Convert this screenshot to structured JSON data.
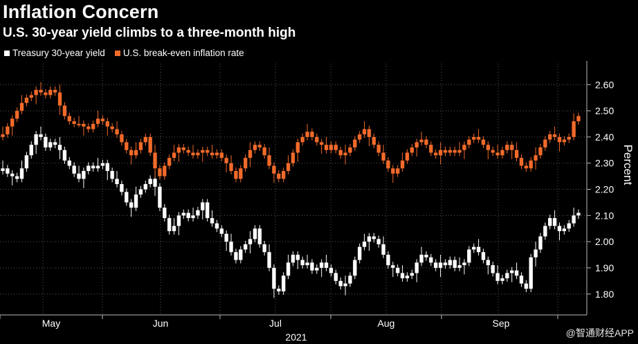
{
  "title": "Inflation Concern",
  "subtitle": "U.S. 30-year yield climbs to a three-month high",
  "watermark": "@智通财经APP",
  "colors": {
    "background": "#000000",
    "grid": "#555555",
    "series_white": "#ffffff",
    "series_orange": "#f26a2a"
  },
  "chart_data": {
    "type": "candlestick",
    "ylabel": "Percent",
    "ylim": [
      1.72,
      2.68
    ],
    "yticks": [
      "2.60",
      "2.50",
      "2.40",
      "2.30",
      "2.20",
      "2.10",
      "2.00",
      "1.90",
      "1.80"
    ],
    "x_months": [
      "May",
      "Jun",
      "Jul",
      "Aug",
      "Sep"
    ],
    "x_year": "2021",
    "x_range_days": [
      0,
      140
    ],
    "legend": [
      "Treasury 30-year yield",
      "U.S. break-even inflation rate"
    ],
    "series": [
      {
        "name": "Treasury 30-year yield",
        "color": "#ffffff",
        "closes": [
          2.28,
          2.26,
          2.25,
          2.24,
          2.28,
          2.33,
          2.37,
          2.41,
          2.4,
          2.36,
          2.38,
          2.37,
          2.35,
          2.31,
          2.29,
          2.26,
          2.24,
          2.27,
          2.29,
          2.28,
          2.29,
          2.3,
          2.27,
          2.24,
          2.22,
          2.19,
          2.15,
          2.13,
          2.18,
          2.2,
          2.22,
          2.24,
          2.21,
          2.13,
          2.09,
          2.04,
          2.06,
          2.1,
          2.11,
          2.09,
          2.1,
          2.12,
          2.15,
          2.09,
          2.07,
          2.05,
          2.03,
          2.0,
          1.96,
          1.93,
          1.97,
          1.99,
          2.01,
          2.05,
          1.99,
          1.96,
          1.9,
          1.82,
          1.81,
          1.87,
          1.92,
          1.95,
          1.93,
          1.91,
          1.92,
          1.89,
          1.9,
          1.92,
          1.9,
          1.88,
          1.85,
          1.83,
          1.84,
          1.87,
          1.93,
          1.98,
          2.0,
          2.02,
          2.01,
          1.99,
          1.95,
          1.91,
          1.9,
          1.88,
          1.86,
          1.87,
          1.88,
          1.92,
          1.95,
          1.94,
          1.92,
          1.9,
          1.92,
          1.91,
          1.93,
          1.9,
          1.91,
          1.92,
          1.97,
          1.98,
          1.96,
          1.93,
          1.91,
          1.88,
          1.85,
          1.86,
          1.88,
          1.89,
          1.87,
          1.84,
          1.82,
          1.94,
          1.97,
          2.02,
          2.06,
          2.09,
          2.06,
          2.04,
          2.05,
          2.07,
          2.1,
          2.11
        ]
      },
      {
        "name": "U.S. break-even inflation rate",
        "color": "#f26a2a",
        "closes": [
          2.41,
          2.44,
          2.47,
          2.5,
          2.53,
          2.55,
          2.56,
          2.58,
          2.57,
          2.56,
          2.58,
          2.57,
          2.52,
          2.48,
          2.46,
          2.45,
          2.45,
          2.44,
          2.43,
          2.45,
          2.47,
          2.46,
          2.44,
          2.43,
          2.41,
          2.38,
          2.35,
          2.33,
          2.35,
          2.38,
          2.4,
          2.34,
          2.28,
          2.25,
          2.29,
          2.32,
          2.34,
          2.36,
          2.35,
          2.34,
          2.33,
          2.34,
          2.35,
          2.34,
          2.33,
          2.34,
          2.32,
          2.3,
          2.27,
          2.24,
          2.28,
          2.32,
          2.35,
          2.37,
          2.36,
          2.33,
          2.29,
          2.26,
          2.24,
          2.27,
          2.3,
          2.34,
          2.38,
          2.4,
          2.42,
          2.4,
          2.38,
          2.37,
          2.35,
          2.37,
          2.35,
          2.33,
          2.34,
          2.36,
          2.39,
          2.41,
          2.43,
          2.4,
          2.37,
          2.34,
          2.31,
          2.28,
          2.26,
          2.28,
          2.31,
          2.34,
          2.36,
          2.38,
          2.39,
          2.37,
          2.34,
          2.33,
          2.35,
          2.34,
          2.35,
          2.34,
          2.35,
          2.37,
          2.39,
          2.4,
          2.39,
          2.37,
          2.35,
          2.34,
          2.33,
          2.35,
          2.37,
          2.35,
          2.32,
          2.29,
          2.28,
          2.31,
          2.33,
          2.36,
          2.39,
          2.41,
          2.4,
          2.38,
          2.39,
          2.4,
          2.46,
          2.48
        ]
      }
    ]
  }
}
